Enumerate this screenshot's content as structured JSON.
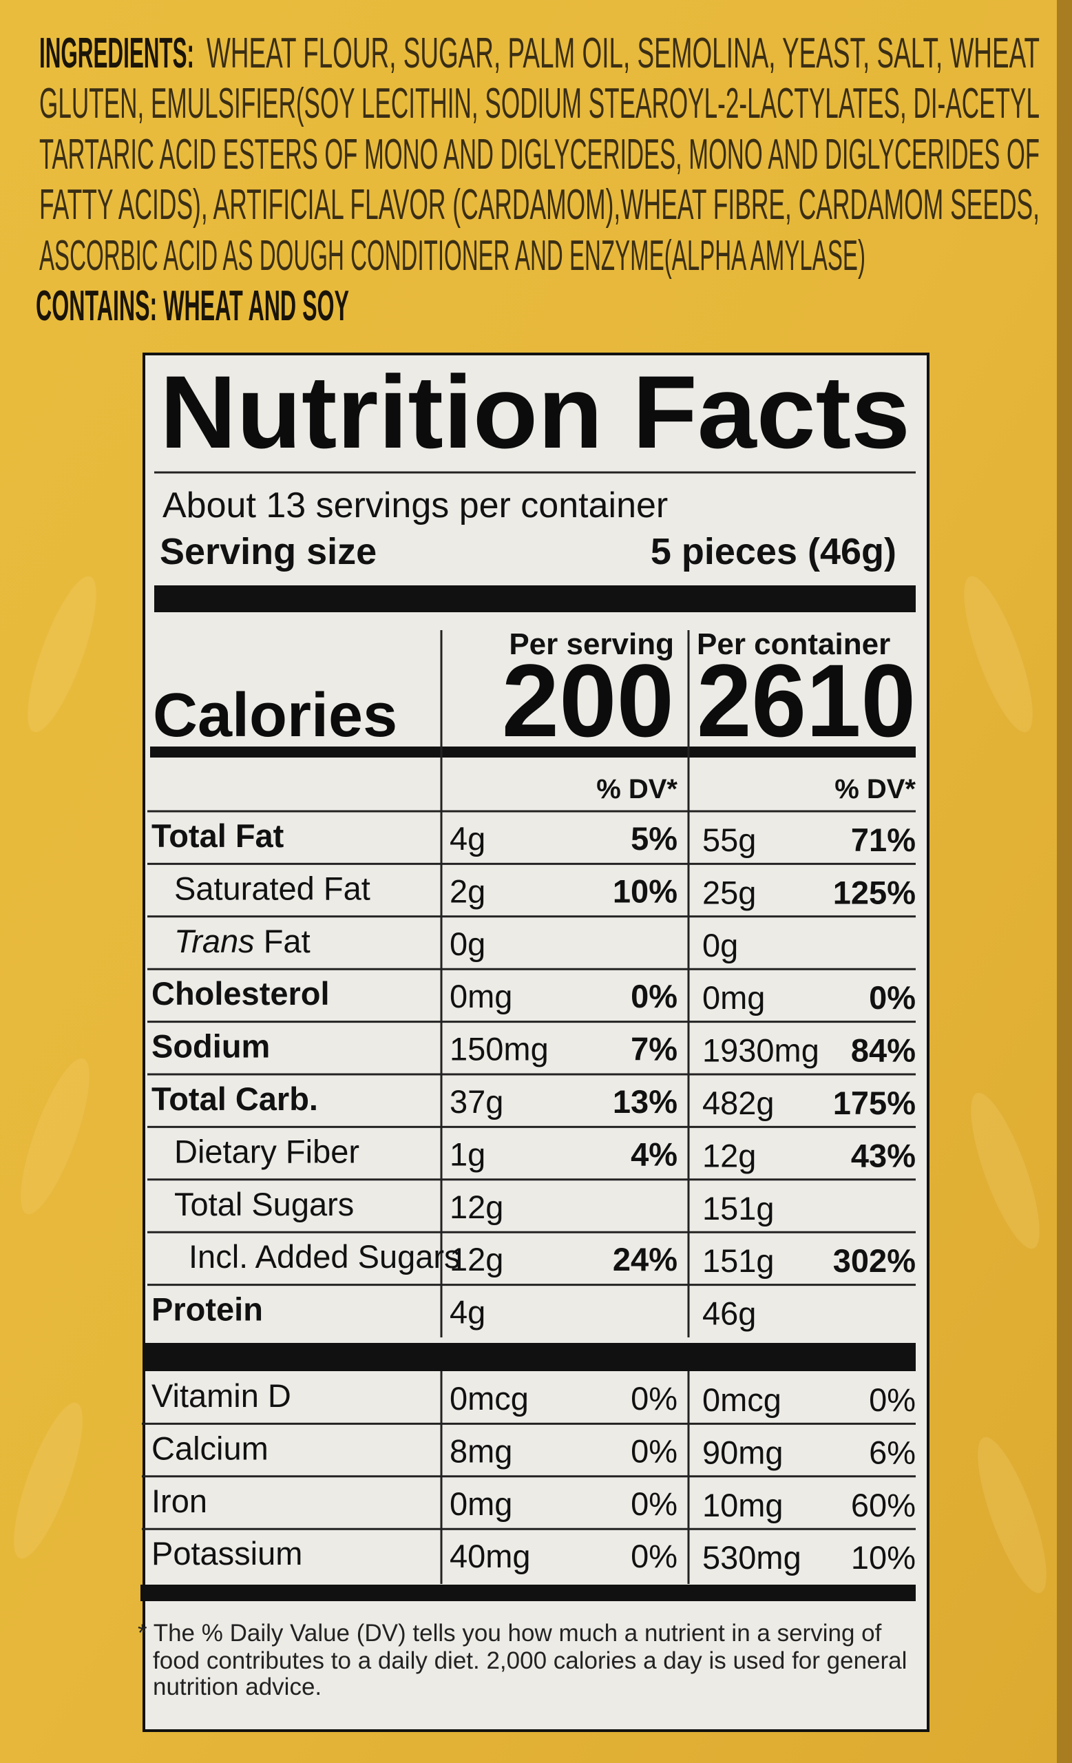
{
  "ingredients": {
    "label": "INGREDIENTS:",
    "lines": [
      "WHEAT FLOUR, SUGAR, PALM OIL, SEMOLINA, YEAST, SALT, WHEAT",
      "GLUTEN, EMULSIFIER(SOY LECITHIN, SODIUM STEAROYL-2-LACTYLATES, DI-ACETYL",
      "TARTARIC ACID ESTERS OF MONO AND DIGLYCERIDES, MONO AND DIGLYCERIDES OF",
      "FATTY ACIDS), ARTIFICIAL FLAVOR (CARDAMOM),WHEAT FIBRE, CARDAMOM SEEDS,",
      "ASCORBIC ACID AS DOUGH CONDITIONER AND ENZYME(ALPHA AMYLASE)"
    ],
    "contains": "CONTAINS: WHEAT AND SOY"
  },
  "nutrition": {
    "title": "Nutrition Facts",
    "servings": "About 13 servings per container",
    "serving_size_label": "Serving size",
    "serving_size": "5 pieces (46g)",
    "calories_label": "Calories",
    "per_serving_label": "Per serving",
    "per_container_label": "Per container",
    "calories_serving": "200",
    "calories_container": "2610",
    "dv_label": "% DV*",
    "nutrients": [
      {
        "name": "Total Fat",
        "level": 0,
        "serving": {
          "amount": "4g",
          "dv": "5%"
        },
        "container": {
          "amount": "55g",
          "dv": "71%"
        }
      },
      {
        "name": "Saturated Fat",
        "level": 1,
        "serving": {
          "amount": "2g",
          "dv": "10%"
        },
        "container": {
          "amount": "25g",
          "dv": "125%"
        }
      },
      {
        "name_italic": "Trans",
        "name": " Fat",
        "level": 1,
        "serving": {
          "amount": "0g"
        },
        "container": {
          "amount": "0g"
        }
      },
      {
        "name": "Cholesterol",
        "level": 0,
        "serving": {
          "amount": "0mg",
          "dv": "0%"
        },
        "container": {
          "amount": "0mg",
          "dv": "0%"
        }
      },
      {
        "name": "Sodium",
        "level": 0,
        "serving": {
          "amount": "150mg",
          "dv": "7%"
        },
        "container": {
          "amount": "1930mg",
          "dv": "84%"
        }
      },
      {
        "name": "Total Carb.",
        "level": 0,
        "serving": {
          "amount": "37g",
          "dv": "13%"
        },
        "container": {
          "amount": "482g",
          "dv": "175%"
        }
      },
      {
        "name": "Dietary Fiber",
        "level": 1,
        "serving": {
          "amount": "1g",
          "dv": "4%"
        },
        "container": {
          "amount": "12g",
          "dv": "43%"
        }
      },
      {
        "name": "Total Sugars",
        "level": 1,
        "serving": {
          "amount": "12g"
        },
        "container": {
          "amount": "151g"
        }
      },
      {
        "name": "Incl. Added Sugars",
        "level": 2,
        "serving": {
          "amount": "12g",
          "dv": "24%"
        },
        "container": {
          "amount": "151g",
          "dv": "302%"
        }
      },
      {
        "name": "Protein",
        "level": 0,
        "serving": {
          "amount": "4g"
        },
        "container": {
          "amount": "46g"
        }
      }
    ],
    "vitamins": [
      {
        "name": "Vitamin D",
        "serving": {
          "amount": "0mcg",
          "dv": "0%"
        },
        "container": {
          "amount": "0mcg",
          "dv": "0%"
        }
      },
      {
        "name": "Calcium",
        "serving": {
          "amount": "8mg",
          "dv": "0%"
        },
        "container": {
          "amount": "90mg",
          "dv": "6%"
        }
      },
      {
        "name": "Iron",
        "serving": {
          "amount": "0mg",
          "dv": "0%"
        },
        "container": {
          "amount": "10mg",
          "dv": "60%"
        }
      },
      {
        "name": "Potassium",
        "serving": {
          "amount": "40mg",
          "dv": "0%"
        },
        "container": {
          "amount": "530mg",
          "dv": "10%"
        }
      }
    ],
    "footnote": [
      "* The % Daily Value (DV) tells you how much a nutrient in a serving of",
      "food contributes to a daily diet. 2,000 calories a day is used for general",
      "nutrition advice."
    ]
  }
}
